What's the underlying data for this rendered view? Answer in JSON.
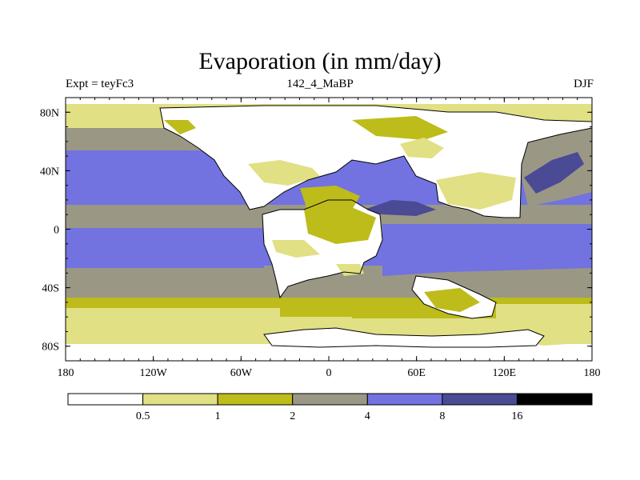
{
  "chart_data": {
    "type": "heatmap",
    "title": "Evaporation (in mm/day)",
    "subtitle_left": "Expt = teyFc3",
    "subtitle_center": "142_4_MaBP",
    "subtitle_right": "DJF",
    "x_range": [
      -180,
      180
    ],
    "y_range": [
      -90,
      90
    ],
    "x_ticks": [
      {
        "value": -180,
        "label": "180"
      },
      {
        "value": -120,
        "label": "120W"
      },
      {
        "value": -60,
        "label": "60W"
      },
      {
        "value": 0,
        "label": "0"
      },
      {
        "value": 60,
        "label": "60E"
      },
      {
        "value": 120,
        "label": "120E"
      },
      {
        "value": 180,
        "label": "180"
      }
    ],
    "y_ticks": [
      {
        "value": 80,
        "label": "80N"
      },
      {
        "value": 40,
        "label": "40N"
      },
      {
        "value": 0,
        "label": "0"
      },
      {
        "value": -40,
        "label": "40S"
      },
      {
        "value": -80,
        "label": "80S"
      }
    ],
    "colorbar": {
      "colors": [
        "#ffffff",
        "#e1e084",
        "#bdbc1a",
        "#9a9885",
        "#7272e0",
        "#4a4a95",
        "#000000"
      ],
      "labels": [
        "0.5",
        "1",
        "2",
        "4",
        "8",
        "16"
      ]
    },
    "land_color": "#ffffff"
  }
}
